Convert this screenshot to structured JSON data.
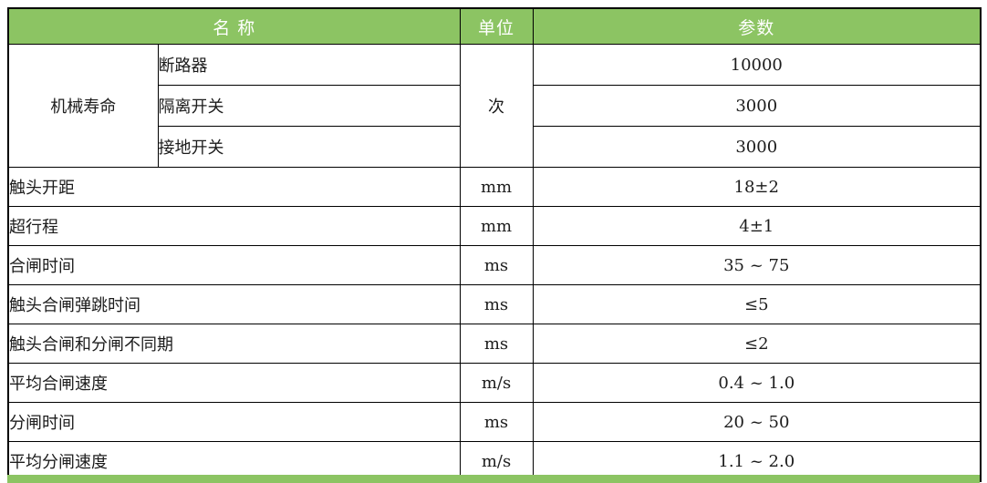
{
  "colors": {
    "header_bg": "#8CC463",
    "header_text": "#FFFFFF",
    "body_text": "#1C1C1C",
    "border": "#000000"
  },
  "table": {
    "headers": {
      "name": "名 称",
      "unit": "单位",
      "param": "参数"
    },
    "mechanical_life": {
      "label": "机械寿命",
      "unit": "次",
      "sub_rows": [
        {
          "name": "断路器",
          "param": "10000"
        },
        {
          "name": "隔离开关",
          "param": "3000"
        },
        {
          "name": "接地开关",
          "param": "3000"
        }
      ]
    },
    "rows": [
      {
        "name": "触头开距",
        "unit": "mm",
        "param": "18±2"
      },
      {
        "name": "超行程",
        "unit": "mm",
        "param": "4±1"
      },
      {
        "name": "合闸时间",
        "unit": "ms",
        "param": "35 ~ 75"
      },
      {
        "name": "触头合闸弹跳时间",
        "unit": "ms",
        "param": "≤5"
      },
      {
        "name": "触头合闸和分闸不同期",
        "unit": "ms",
        "param": "≤2"
      },
      {
        "name": "平均合闸速度",
        "unit": "m/s",
        "param": "0.4 ~ 1.0"
      },
      {
        "name": "分闸时间",
        "unit": "ms",
        "param": "20 ~ 50"
      },
      {
        "name": "平均分闸速度",
        "unit": "m/s",
        "param": "1.1 ~ 2.0"
      }
    ]
  }
}
